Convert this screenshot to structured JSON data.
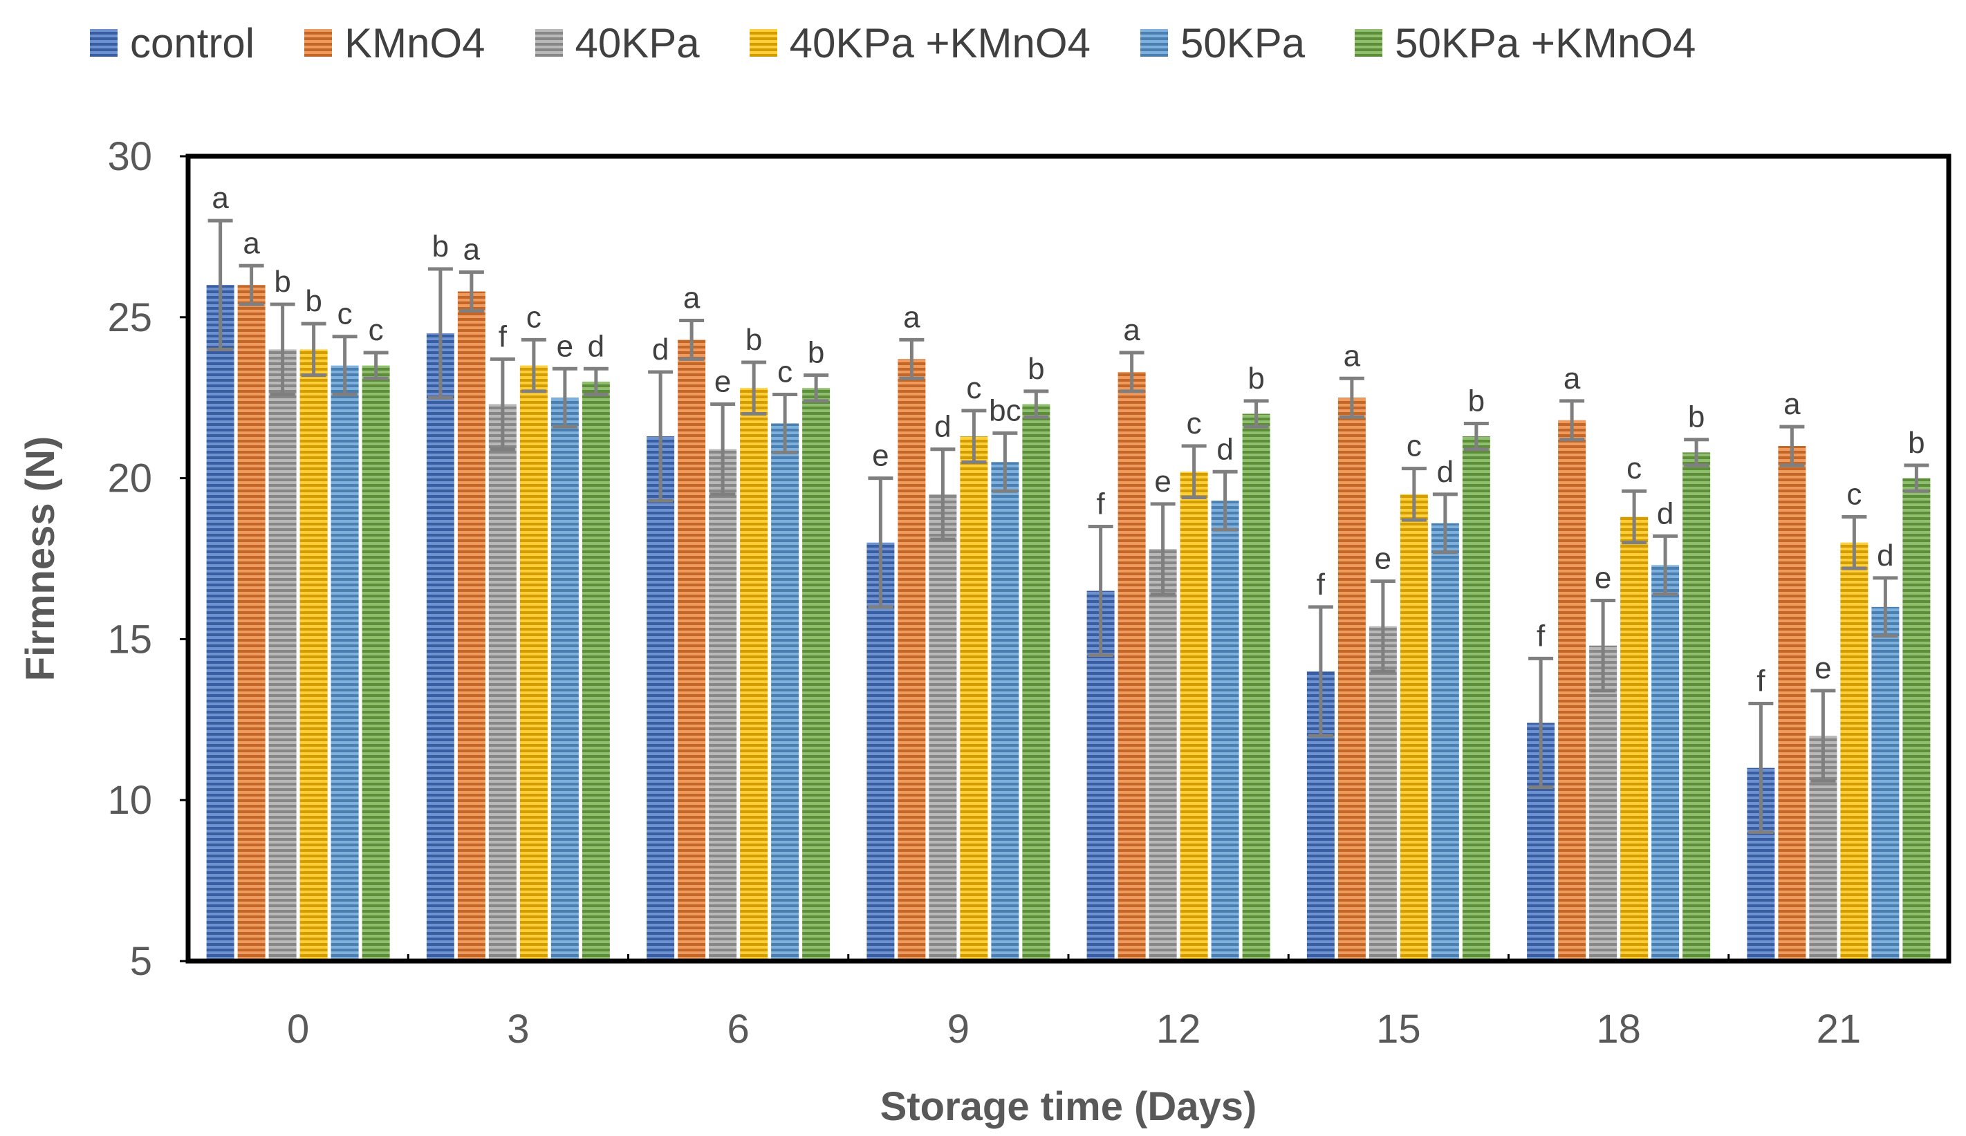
{
  "chart_data": {
    "type": "bar",
    "title": "",
    "xlabel": "Storage time (Days)",
    "ylabel": "Firmness (N)",
    "ylim": [
      5,
      30
    ],
    "yticks": [
      5,
      10,
      15,
      20,
      25,
      30
    ],
    "categories": [
      "0",
      "3",
      "6",
      "9",
      "12",
      "15",
      "18",
      "21"
    ],
    "legend_position": "top",
    "series": [
      {
        "name": "control",
        "color": "#4472C4",
        "values": [
          26.0,
          24.5,
          21.3,
          18.0,
          16.5,
          14.0,
          12.4,
          11.0
        ],
        "errors": [
          2.0,
          2.0,
          2.0,
          2.0,
          2.0,
          2.0,
          2.0,
          2.0
        ],
        "letters": [
          "a",
          "b",
          "d",
          "e",
          "f",
          "f",
          "f",
          "f"
        ]
      },
      {
        "name": "KMnO4",
        "color": "#ED7D31",
        "values": [
          26.0,
          25.8,
          24.3,
          23.7,
          23.3,
          22.5,
          21.8,
          21.0
        ],
        "errors": [
          0.6,
          0.6,
          0.6,
          0.6,
          0.6,
          0.6,
          0.6,
          0.6
        ],
        "letters": [
          "a",
          "a",
          "a",
          "a",
          "a",
          "a",
          "a",
          "a"
        ]
      },
      {
        "name": "40KPa",
        "color": "#A5A5A5",
        "values": [
          24.0,
          22.3,
          20.9,
          19.5,
          17.8,
          15.4,
          14.8,
          12.0
        ],
        "errors": [
          1.4,
          1.4,
          1.4,
          1.4,
          1.4,
          1.4,
          1.4,
          1.4
        ],
        "letters": [
          "b",
          "f",
          "e",
          "d",
          "e",
          "e",
          "e",
          "e"
        ]
      },
      {
        "name": "40KPa +KMnO4",
        "color": "#FFC000",
        "values": [
          24.0,
          23.5,
          22.8,
          21.3,
          20.2,
          19.5,
          18.8,
          18.0
        ],
        "errors": [
          0.8,
          0.8,
          0.8,
          0.8,
          0.8,
          0.8,
          0.8,
          0.8
        ],
        "letters": [
          "b",
          "c",
          "b",
          "c",
          "c",
          "c",
          "c",
          "c"
        ]
      },
      {
        "name": "50KPa",
        "color": "#5B9BD5",
        "values": [
          23.5,
          22.5,
          21.7,
          20.5,
          19.3,
          18.6,
          17.3,
          16.0
        ],
        "errors": [
          0.9,
          0.9,
          0.9,
          0.9,
          0.9,
          0.9,
          0.9,
          0.9
        ],
        "letters": [
          "c",
          "e",
          "c",
          "bc",
          "d",
          "d",
          "d",
          "d"
        ]
      },
      {
        "name": "50KPa +KMnO4",
        "color": "#70AD47",
        "values": [
          23.5,
          23.0,
          22.8,
          22.3,
          22.0,
          21.3,
          20.8,
          20.0
        ],
        "errors": [
          0.4,
          0.4,
          0.4,
          0.4,
          0.4,
          0.4,
          0.4,
          0.4
        ],
        "letters": [
          "c",
          "d",
          "b",
          "b",
          "b",
          "b",
          "b",
          "b"
        ]
      }
    ]
  }
}
